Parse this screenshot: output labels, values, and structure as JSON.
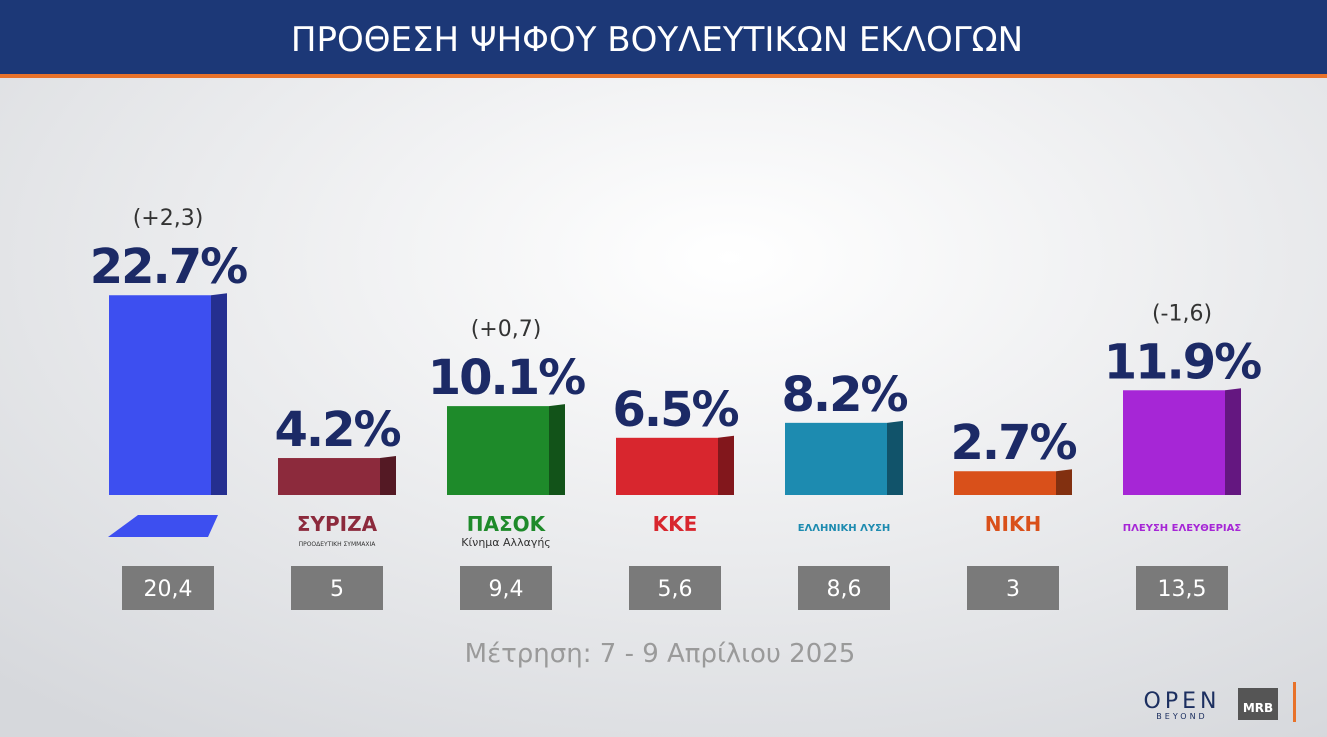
{
  "header": {
    "title": "ΠΡΟΘΕΣΗ ΨΗΦΟΥ ΒΟΥΛΕΥΤΙΚΩΝ ΕΚΛΟΓΩΝ"
  },
  "chart_data": {
    "type": "bar",
    "categories": [
      null,
      "ΣΥΡΙΖΑ",
      "ΠΑΣΟΚ",
      "ΚΚΕ",
      "ΕΛΛΗΝΙΚΗ ΛΥΣΗ",
      "ΝΙΚΗ",
      "ΠΛΕΥΣΗ ΕΛΕΥΘΕΡΙΑΣ"
    ],
    "category_sublabels": [
      null,
      "ΠΡΟΟΔΕΥΤΙΚΗ ΣΥΜΜΑΧΙΑ",
      "Κίνημα Αλλαγής",
      null,
      null,
      null,
      null
    ],
    "values": [
      22.7,
      4.2,
      10.1,
      6.5,
      8.2,
      2.7,
      11.9
    ],
    "value_labels": [
      "22.7%",
      "4.2%",
      "10.1%",
      "6.5%",
      "8.2%",
      "2.7%",
      "11.9%"
    ],
    "change_labels": [
      "(+2,3)",
      null,
      "(+0,7)",
      null,
      null,
      null,
      "(-1,6)"
    ],
    "previous_labels": [
      "20,4",
      "5",
      "9,4",
      "5,6",
      "8,6",
      "3",
      "13,5"
    ],
    "colors": [
      "#3d4ff0",
      "#8c2a3c",
      "#1e8a2a",
      "#d8262e",
      "#1d8bb0",
      "#d9501a",
      "#a626d6"
    ],
    "note": "Μέτρηση: 7 - 9 Απρίλιου 2025"
  },
  "footer": {
    "brand": "OPEN",
    "brand_sub": "BEYOND",
    "pollster": "MRB"
  }
}
